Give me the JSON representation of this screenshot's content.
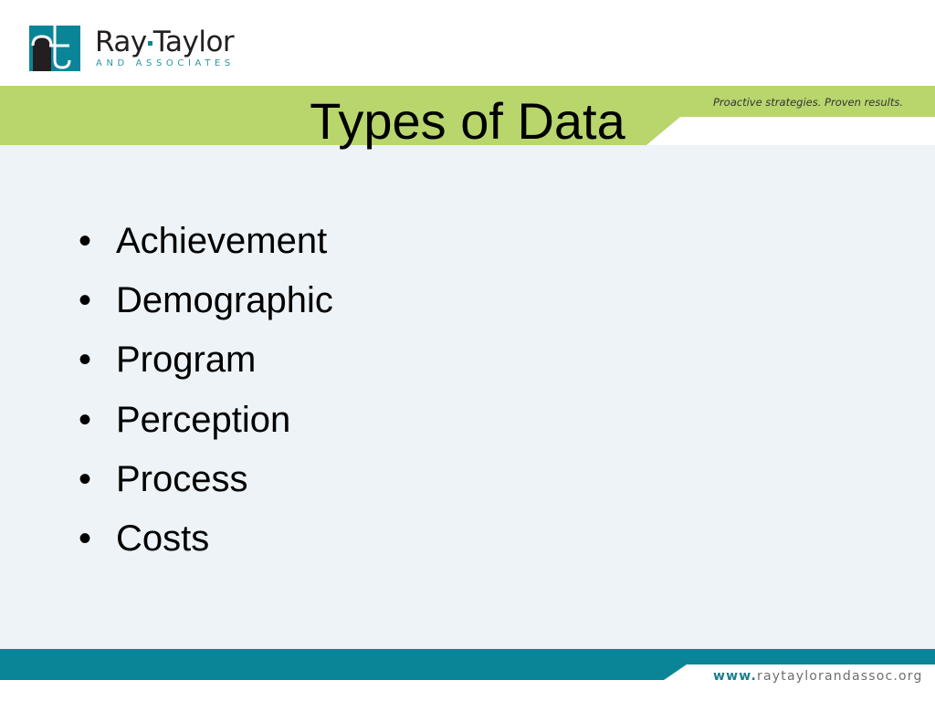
{
  "brand": {
    "name_part1": "Ray",
    "name_part2": "Taylor",
    "subtitle": "AND ASSOCIATES",
    "tagline": "Proactive strategies. Proven results.",
    "url_prefix": "www.",
    "url_rest": "raytaylorandassoc.org"
  },
  "slide": {
    "title": "Types of Data",
    "bullets": [
      "Achievement",
      "Demographic",
      "Program",
      "Perception",
      "Process",
      "Costs"
    ]
  },
  "colors": {
    "green": "#b8d66c",
    "teal": "#0a8597",
    "body": "#edf3f7"
  }
}
